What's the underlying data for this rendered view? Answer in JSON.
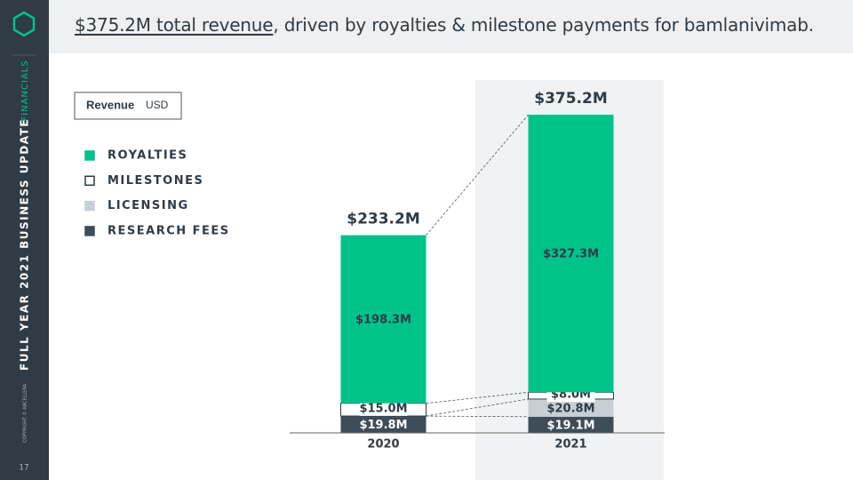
{
  "slide": {
    "title_emphasis": "$375.2M total revenue",
    "title_rest": ", driven by royalties & milestone payments for bamlanivimab.",
    "section": "FINANCIALS",
    "deck": "FULL YEAR 2021 BUSINESS UPDATE",
    "copyright": "COPYRIGHT © ABCELLERA",
    "page": "17",
    "unit_box": {
      "label": "Revenue",
      "unit": "USD"
    }
  },
  "chart_data": {
    "type": "bar",
    "stacked": true,
    "categories": [
      "2020",
      "2021"
    ],
    "series": [
      {
        "name": "ROYALTIES",
        "color": "#00c389",
        "values": [
          198.3,
          327.3
        ],
        "value_labels": [
          "$198.3M",
          "$327.3M"
        ]
      },
      {
        "name": "MILESTONES",
        "color": "#ffffff",
        "values": [
          15.0,
          8.0
        ],
        "value_labels": [
          "$15.0M",
          "$8.0M"
        ]
      },
      {
        "name": "LICENSING",
        "color": "#c8cfd4",
        "values": [
          0.1,
          20.8
        ],
        "value_labels": [
          null,
          "$20.8M"
        ]
      },
      {
        "name": "RESEARCH FEES",
        "color": "#3d4d59",
        "values": [
          19.8,
          19.1
        ],
        "value_labels": [
          "$19.8M",
          "$19.1M"
        ]
      }
    ],
    "totals": {
      "values": [
        233.2,
        375.2
      ],
      "value_labels": [
        "$233.2M",
        "$375.2M"
      ]
    },
    "ylim": [
      0,
      390
    ]
  }
}
